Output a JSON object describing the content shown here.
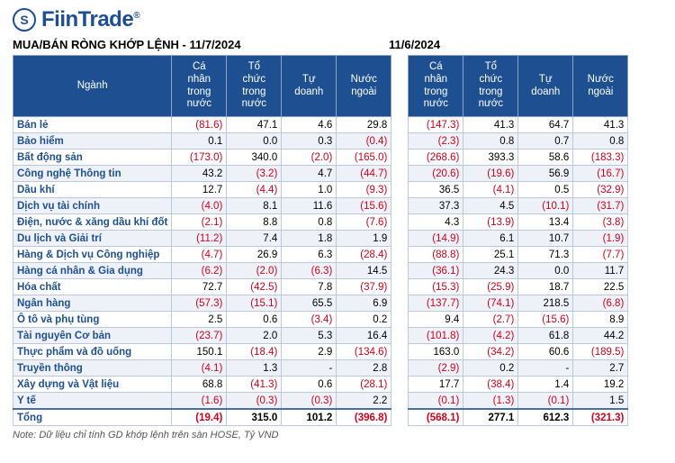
{
  "brand": {
    "name": "FiinTrade",
    "mark": "S"
  },
  "titles": {
    "left": "MUA/BÁN RÒNG KHỚP LỆNH - 11/7/2024",
    "right": "11/6/2024"
  },
  "headers": {
    "sector": "Ngành",
    "c1": "Cá nhân trong nước",
    "c2": "Tổ chức trong nước",
    "c3": "Tự doanh",
    "c4": "Nước ngoài"
  },
  "total_label": "Tổng",
  "note": "Note: Dữ liệu chỉ tính GD khớp lệnh trên sàn HOSE, Tỷ VND",
  "sectors": [
    "Bán lẻ",
    "Bảo hiểm",
    "Bất động sản",
    "Công nghệ Thông tin",
    "Dầu khí",
    "Dịch vụ tài chính",
    "Điện, nước & xăng dầu khí đốt",
    "Du lịch và Giải trí",
    "Hàng & Dịch vụ Công nghiệp",
    "Hàng cá nhân & Gia dụng",
    "Hóa chất",
    "Ngân hàng",
    "Ô tô và phụ tùng",
    "Tài nguyên Cơ bản",
    "Thực phẩm và đồ uống",
    "Truyền thông",
    "Xây dựng và Vật liệu",
    "Y tế"
  ],
  "left": {
    "rows": [
      [
        "(81.6)",
        "47.1",
        "4.6",
        "29.8"
      ],
      [
        "0.1",
        "0.0",
        "0.3",
        "(0.4)"
      ],
      [
        "(173.0)",
        "340.0",
        "(2.0)",
        "(165.0)"
      ],
      [
        "43.2",
        "(3.2)",
        "4.7",
        "(44.7)"
      ],
      [
        "12.7",
        "(4.4)",
        "1.0",
        "(9.3)"
      ],
      [
        "(4.0)",
        "8.1",
        "11.6",
        "(15.6)"
      ],
      [
        "(2.1)",
        "8.8",
        "0.8",
        "(7.6)"
      ],
      [
        "(11.2)",
        "7.4",
        "1.8",
        "1.9"
      ],
      [
        "(4.7)",
        "26.9",
        "6.3",
        "(28.4)"
      ],
      [
        "(6.2)",
        "(2.0)",
        "(6.3)",
        "14.5"
      ],
      [
        "72.7",
        "(42.5)",
        "7.8",
        "(37.9)"
      ],
      [
        "(57.3)",
        "(15.1)",
        "65.5",
        "6.9"
      ],
      [
        "2.5",
        "0.6",
        "(3.4)",
        "0.2"
      ],
      [
        "(23.7)",
        "2.0",
        "5.3",
        "16.4"
      ],
      [
        "150.1",
        "(18.4)",
        "2.9",
        "(134.6)"
      ],
      [
        "(4.1)",
        "1.3",
        "-",
        "2.8"
      ],
      [
        "68.8",
        "(41.3)",
        "0.6",
        "(28.1)"
      ],
      [
        "(1.6)",
        "(0.3)",
        "(0.3)",
        "2.2"
      ]
    ],
    "total": [
      "(19.4)",
      "315.0",
      "101.2",
      "(396.8)"
    ]
  },
  "right": {
    "rows": [
      [
        "(147.3)",
        "41.3",
        "64.7",
        "41.3"
      ],
      [
        "(2.3)",
        "0.8",
        "0.7",
        "0.8"
      ],
      [
        "(268.6)",
        "393.3",
        "58.6",
        "(183.3)"
      ],
      [
        "(20.6)",
        "(19.6)",
        "56.9",
        "(16.7)"
      ],
      [
        "36.5",
        "(4.1)",
        "0.5",
        "(32.9)"
      ],
      [
        "37.3",
        "4.5",
        "(10.1)",
        "(31.7)"
      ],
      [
        "4.3",
        "(13.9)",
        "13.4",
        "(3.8)"
      ],
      [
        "(14.9)",
        "6.1",
        "10.7",
        "(1.9)"
      ],
      [
        "(88.8)",
        "25.1",
        "71.3",
        "(7.7)"
      ],
      [
        "(36.1)",
        "24.3",
        "0.0",
        "11.7"
      ],
      [
        "(15.3)",
        "(25.9)",
        "18.7",
        "22.5"
      ],
      [
        "(137.7)",
        "(74.1)",
        "218.5",
        "(6.8)"
      ],
      [
        "9.4",
        "(2.7)",
        "(15.6)",
        "8.9"
      ],
      [
        "(101.8)",
        "(4.2)",
        "61.8",
        "44.2"
      ],
      [
        "163.0",
        "(34.2)",
        "60.6",
        "(189.5)"
      ],
      [
        "(2.9)",
        "0.2",
        "-",
        "2.7"
      ],
      [
        "17.7",
        "(38.4)",
        "1.4",
        "19.2"
      ],
      [
        "(0.1)",
        "(1.3)",
        "(0.1)",
        "1.5"
      ]
    ],
    "total": [
      "(568.1)",
      "277.1",
      "612.3",
      "(321.3)"
    ]
  },
  "layout": {
    "left_title_width": 418
  },
  "colors": {
    "header_bg": "#1d4f91",
    "row_stripe": "#eef2f8",
    "negative": "#d0021b",
    "positive": "#000000",
    "sector_text": "#1d4f91"
  }
}
